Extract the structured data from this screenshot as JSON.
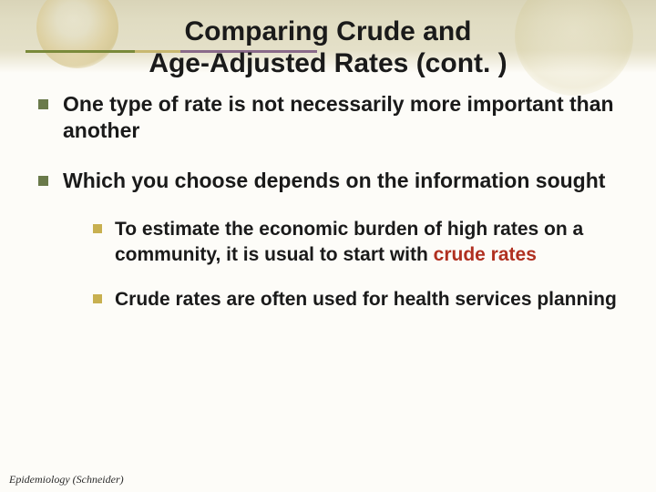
{
  "colors": {
    "bullet_l1": "#6a7a4a",
    "bullet_l2": "#c8b050",
    "highlight": "#b03020",
    "text": "#1a1a1a"
  },
  "title": {
    "line1": "Comparing Crude and",
    "line2": "Age-Adjusted Rates (cont. )"
  },
  "bullets": {
    "b1": "One type of rate is not necessarily more important than another",
    "b2": "Which you choose depends on the information sought",
    "sub1_pre": "To estimate the economic burden of high rates on a community, it is usual to start with ",
    "sub1_hl": "crude rates",
    "sub2": "Crude rates are often used for health services planning"
  },
  "footer": "Epidemiology  (Schneider)"
}
